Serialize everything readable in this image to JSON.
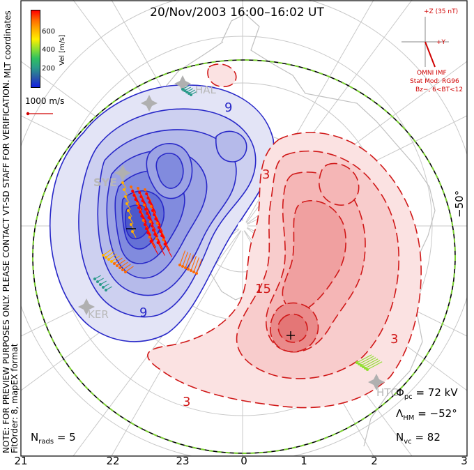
{
  "title": "20/Nov/2003 16:00–16:02 UT",
  "notes": {
    "mlt_coordinates": "MLT coordinates",
    "preview": "NOTE: FOR PREVIEW PURPOSES ONLY. PLEASE CONTACT VT-SD STAFF FOR VERIFICATION.",
    "fitorder": "FitOrder: 8, mapEX format"
  },
  "colorbar": {
    "label": "Vel [m/s]",
    "ticks": [
      "600",
      "400",
      "200"
    ],
    "colors": [
      "#ff0000",
      "#ff6a00",
      "#ffb000",
      "#ffee00",
      "#90e030",
      "#30c060",
      "#2a9a8a",
      "#2a5aa8",
      "#1020e0"
    ]
  },
  "reference_vector": "1000 m/s",
  "imf": {
    "z_label": "+Z (35 nT)",
    "y_label": "+Y",
    "source": "OMNI IMF",
    "stat_mod": "Stat Mod: RG96",
    "bz_bt": "Bz−, 6<BT<12"
  },
  "latitude_label": "−50°",
  "contour_labels": [
    "9",
    "9",
    "3",
    "15",
    "3",
    "3"
  ],
  "radars": [
    "HAL",
    "SYE",
    "KER",
    "HTG"
  ],
  "extrema": {
    "minus": "−",
    "plus": "+"
  },
  "stats": {
    "phi_pc": "= 72 kV",
    "lambda_hm": "= −52°",
    "n_vc": "= 82",
    "n_rads": "= 5"
  },
  "stats_symbols": {
    "phi": "Φ",
    "phi_sub": "pc",
    "lambda": "Λ",
    "lambda_sub": "HM",
    "nvc": "N",
    "nvc_sub": "vc",
    "nrads": "N",
    "nrads_sub": "rads"
  },
  "mlt_ticks": [
    "21",
    "22",
    "23",
    "0",
    "1",
    "2",
    "3"
  ],
  "colors": {
    "negative_cell": "#2828c8",
    "positive_cell": "#d01818",
    "hmb": "#7ad030",
    "imf": "#d00000"
  }
}
